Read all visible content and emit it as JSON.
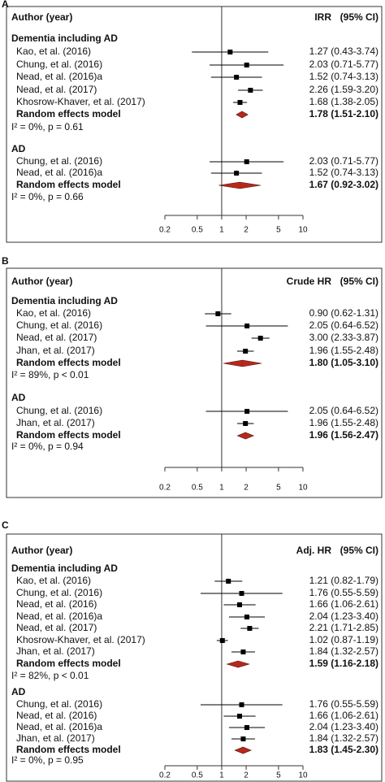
{
  "chart_data": [
    {
      "type": "forest",
      "panel_label": "A",
      "header_label": "Author (year)",
      "effect_label": "IRR",
      "ci_label": "(95% CI)",
      "xscale": "log",
      "xlim": [
        0.2,
        10
      ],
      "xticks": [
        0.2,
        0.5,
        1,
        2,
        5,
        10
      ],
      "reference_line": 1,
      "color": "#000000",
      "summary_color": "#b5281e",
      "groups": [
        {
          "name": "Dementia including AD",
          "studies": [
            "Kao, et al. (2016)",
            "Chung, et al. (2016)",
            "Nead, et al. (2016)a",
            "Nead, et al. (2017)",
            "Khosrow-Khaver, et al. (2017)"
          ],
          "values": [
            1.27,
            2.03,
            1.52,
            2.26,
            1.68
          ],
          "lower": [
            0.43,
            0.71,
            0.74,
            1.59,
            1.38
          ],
          "upper": [
            3.74,
            5.77,
            3.13,
            3.2,
            2.05
          ],
          "value_labels": [
            "1.27 (0.43-3.74)",
            "2.03 (0.71-5.77)",
            "1.52 (0.74-3.13)",
            "2.26 (1.59-3.20)",
            "1.68 (1.38-2.05)"
          ],
          "summary": {
            "name": "Random effects model",
            "value": 1.78,
            "lower": 1.51,
            "upper": 2.1,
            "value_label": "1.78 (1.51-2.10)"
          },
          "heterogeneity": "I² = 0%, p = 0.61"
        },
        {
          "name": "AD",
          "studies": [
            "Chung, et al. (2016)",
            "Nead, et al. (2016)a"
          ],
          "values": [
            2.03,
            1.52
          ],
          "lower": [
            0.71,
            0.74
          ],
          "upper": [
            5.77,
            3.13
          ],
          "value_labels": [
            "2.03 (0.71-5.77)",
            "1.52 (0.74-3.13)"
          ],
          "summary": {
            "name": "Random effects model",
            "value": 1.67,
            "lower": 0.92,
            "upper": 3.02,
            "value_label": "1.67 (0.92-3.02)"
          },
          "heterogeneity": "I² = 0%, p = 0.66"
        }
      ]
    },
    {
      "type": "forest",
      "panel_label": "B",
      "header_label": "Author (year)",
      "effect_label": "Crude HR",
      "ci_label": "(95% CI)",
      "xscale": "log",
      "xlim": [
        0.2,
        10
      ],
      "xticks": [
        0.2,
        0.5,
        1,
        2,
        5,
        10
      ],
      "reference_line": 1,
      "color": "#000000",
      "summary_color": "#b5281e",
      "groups": [
        {
          "name": "Dementia including AD",
          "studies": [
            "Kao, et al. (2016)",
            "Chung, et al. (2016)",
            "Nead, et al. (2017)",
            "Jhan, et al. (2017)"
          ],
          "values": [
            0.9,
            2.05,
            3.0,
            1.96
          ],
          "lower": [
            0.62,
            0.64,
            2.33,
            1.55
          ],
          "upper": [
            1.31,
            6.52,
            3.87,
            2.48
          ],
          "value_labels": [
            "0.90 (0.62-1.31)",
            "2.05 (0.64-6.52)",
            "3.00 (2.33-3.87)",
            "1.96 (1.55-2.48)"
          ],
          "summary": {
            "name": "Random effects model",
            "value": 1.8,
            "lower": 1.05,
            "upper": 3.1,
            "value_label": "1.80 (1.05-3.10)"
          },
          "heterogeneity": "I² = 89%, p < 0.01"
        },
        {
          "name": "AD",
          "studies": [
            "Chung, et al. (2016)",
            "Jhan, et al. (2017)"
          ],
          "values": [
            2.05,
            1.96
          ],
          "lower": [
            0.64,
            1.55
          ],
          "upper": [
            6.52,
            2.48
          ],
          "value_labels": [
            "2.05 (0.64-6.52)",
            "1.96 (1.55-2.48)"
          ],
          "summary": {
            "name": "Random effects model",
            "value": 1.96,
            "lower": 1.56,
            "upper": 2.47,
            "value_label": "1.96 (1.56-2.47)"
          },
          "heterogeneity": "I² = 0%, p = 0.94"
        }
      ]
    },
    {
      "type": "forest",
      "panel_label": "C",
      "header_label": "Author (year)",
      "effect_label": "Adj. HR",
      "ci_label": "(95% CI)",
      "xscale": "log",
      "xlim": [
        0.2,
        10
      ],
      "xticks": [
        0.2,
        0.5,
        1,
        2,
        5,
        10
      ],
      "reference_line": 1,
      "color": "#000000",
      "summary_color": "#b5281e",
      "groups": [
        {
          "name": "Dementia including AD",
          "studies": [
            "Kao, et al. (2016)",
            "Chung, et al. (2016)",
            "Nead, et al. (2016)",
            "Nead, et al. (2016)a",
            "Nead, et al. (2017)",
            "Khosrow-Khaver, et al. (2017)",
            "Jhan, et al. (2017)"
          ],
          "values": [
            1.21,
            1.76,
            1.66,
            2.04,
            2.21,
            1.02,
            1.84
          ],
          "lower": [
            0.82,
            0.55,
            1.06,
            1.23,
            1.71,
            0.87,
            1.32
          ],
          "upper": [
            1.79,
            5.59,
            2.61,
            3.4,
            2.85,
            1.19,
            2.57
          ],
          "value_labels": [
            "1.21 (0.82-1.79)",
            "1.76 (0.55-5.59)",
            "1.66 (1.06-2.61)",
            "2.04 (1.23-3.40)",
            "2.21 (1.71-2.85)",
            "1.02 (0.87-1.19)",
            "1.84 (1.32-2.57)"
          ],
          "summary": {
            "name": "Random effects model",
            "value": 1.59,
            "lower": 1.16,
            "upper": 2.18,
            "value_label": "1.59 (1.16-2.18)"
          },
          "heterogeneity": "I² = 82%, p < 0.01"
        },
        {
          "name": "AD",
          "studies": [
            "Chung, et al. (2016)",
            "Nead, et al. (2016)",
            "Nead, et al. (2016)a",
            "Jhan, et al. (2017)"
          ],
          "values": [
            1.76,
            1.66,
            2.04,
            1.84
          ],
          "lower": [
            0.55,
            1.06,
            1.23,
            1.32
          ],
          "upper": [
            5.59,
            2.61,
            3.4,
            2.57
          ],
          "value_labels": [
            "1.76 (0.55-5.59)",
            "1.66 (1.06-2.61)",
            "2.04 (1.23-3.40)",
            "1.84 (1.32-2.57)"
          ],
          "summary": {
            "name": "Random effects model",
            "value": 1.83,
            "lower": 1.45,
            "upper": 2.3,
            "value_label": "1.83 (1.45-2.30)"
          },
          "heterogeneity": "I² = 0%, p = 0.95"
        }
      ]
    }
  ]
}
